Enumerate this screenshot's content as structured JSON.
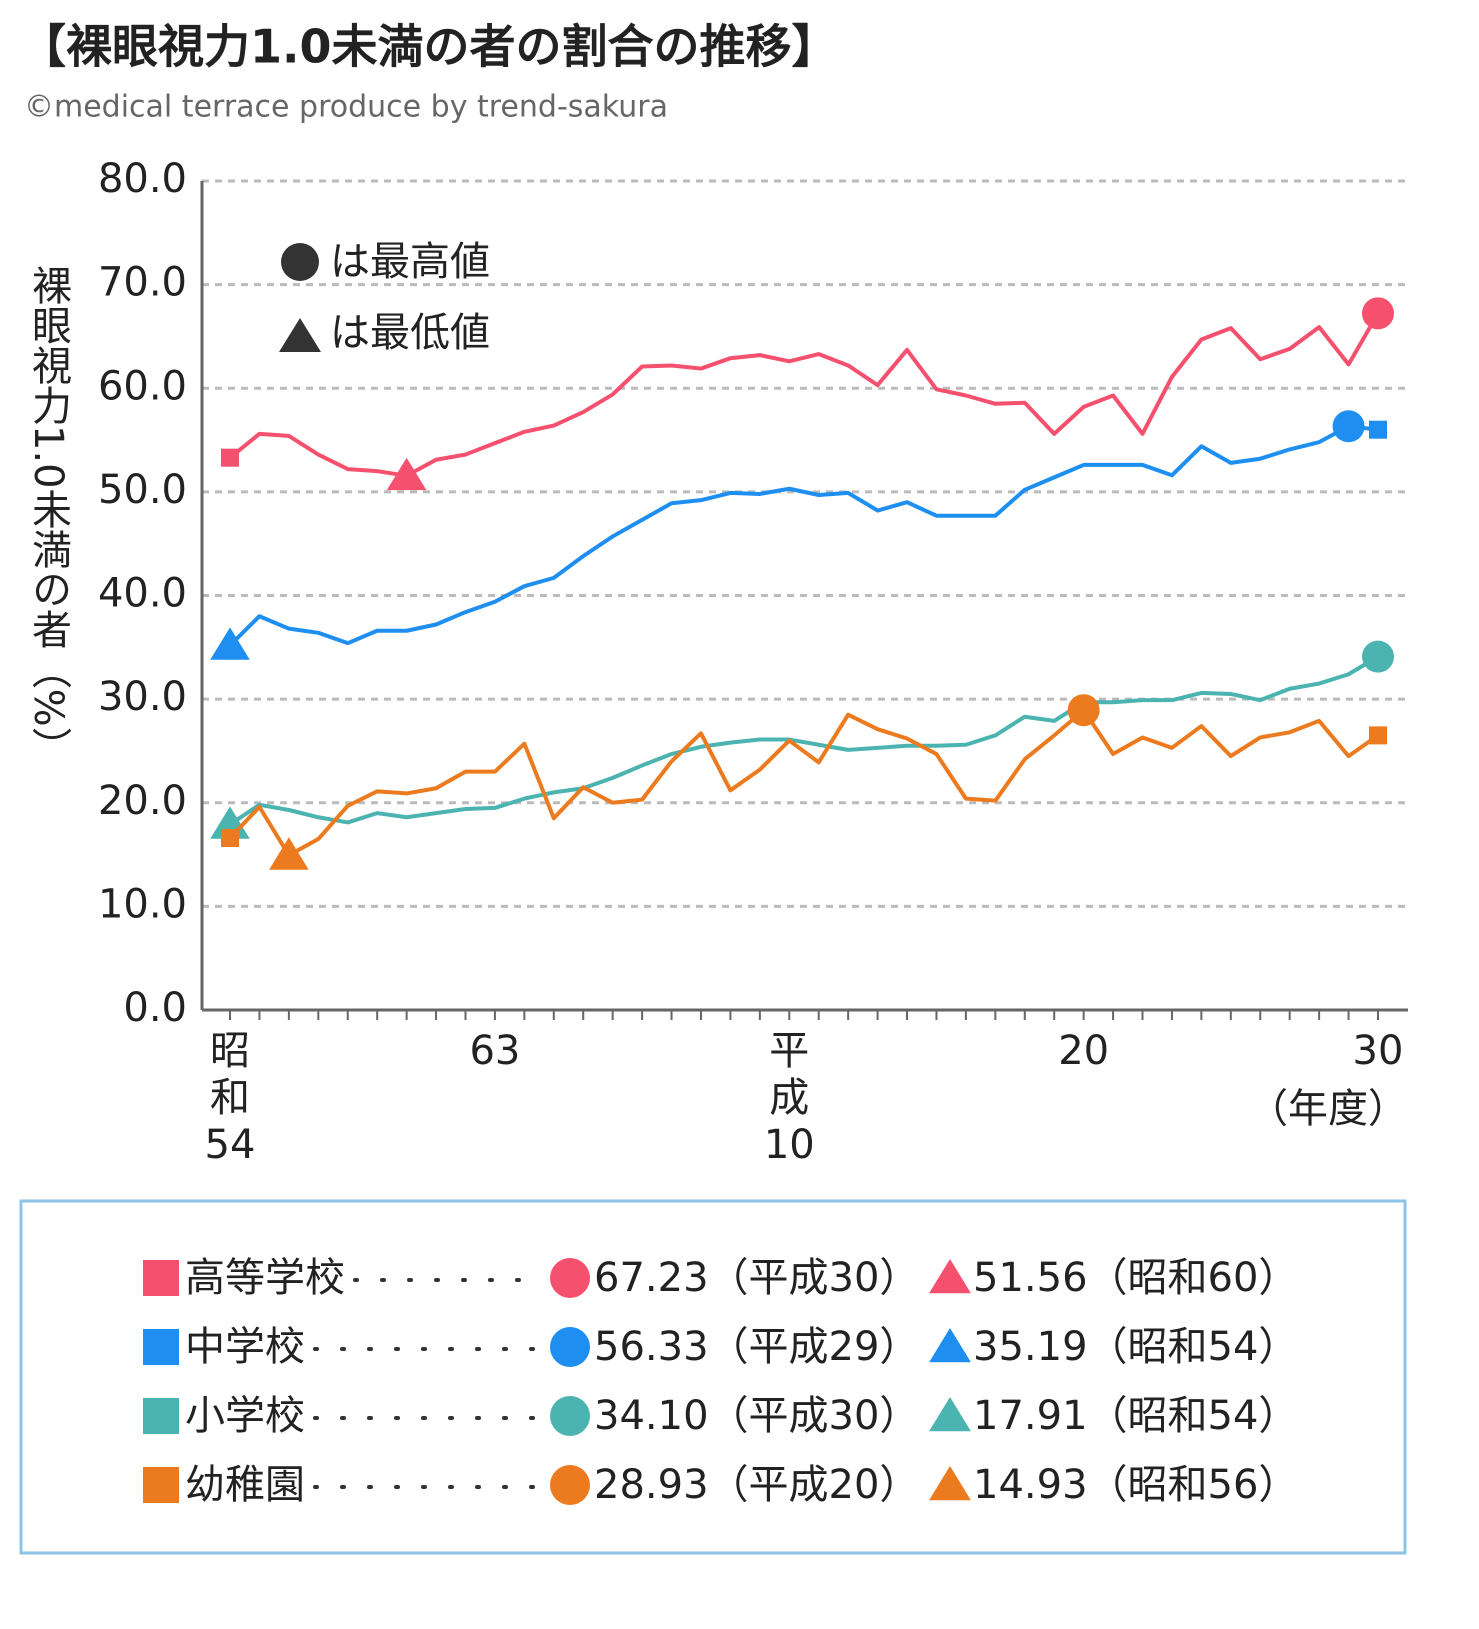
{
  "chart_data": {
    "type": "line",
    "title": "【裸眼視力1.0未満の者の割合の推移】",
    "subtitle": "©medical terrace produce by trend-sakura",
    "ylabel": "裸眼視力1.0未満の者（%）",
    "xlabel": "（年度）",
    "annotations": {
      "max": "は最高値",
      "min": "は最低値"
    },
    "categories": [
      "昭\n和\n54",
      null,
      null,
      null,
      null,
      null,
      null,
      null,
      null,
      "63",
      null,
      null,
      null,
      null,
      null,
      null,
      null,
      null,
      null,
      "平\n成\n10",
      null,
      null,
      null,
      null,
      null,
      null,
      null,
      null,
      null,
      "20",
      null,
      null,
      null,
      null,
      null,
      null,
      null,
      null,
      null,
      "30"
    ],
    "ylim": [
      0,
      80
    ],
    "yticks": [
      {
        "value": 0,
        "label": "0.0"
      },
      {
        "value": 10,
        "label": "10.0"
      },
      {
        "value": 20,
        "label": "20.0"
      },
      {
        "value": 30,
        "label": "30.0"
      },
      {
        "value": 40,
        "label": "40.0"
      },
      {
        "value": 50,
        "label": "50.0"
      },
      {
        "value": 60,
        "label": "60.0"
      },
      {
        "value": 70,
        "label": "70.0"
      },
      {
        "value": 80,
        "label": "80.0"
      }
    ],
    "grid": true,
    "series": [
      {
        "name": "高等学校",
        "color": "#f5506e",
        "max_label": "67.23（平成30）",
        "min_label": "51.56（昭和60）",
        "values": [
          53.3,
          55.6,
          55.4,
          53.6,
          52.2,
          52.0,
          51.56,
          53.1,
          53.6,
          54.7,
          55.8,
          56.4,
          57.7,
          59.4,
          62.1,
          62.2,
          61.9,
          62.9,
          63.2,
          62.6,
          63.3,
          62.2,
          60.3,
          63.7,
          59.9,
          59.3,
          58.5,
          58.6,
          55.6,
          58.2,
          59.3,
          55.6,
          61.1,
          64.7,
          65.8,
          62.8,
          63.8,
          65.9,
          62.3,
          67.23
        ]
      },
      {
        "name": "中学校",
        "color": "#1e8ff0",
        "max_label": "56.33（平成29）",
        "min_label": "35.19（昭和54）",
        "values": [
          35.19,
          38.0,
          36.8,
          36.4,
          35.4,
          36.6,
          36.6,
          37.2,
          38.4,
          39.4,
          40.9,
          41.7,
          43.8,
          45.7,
          47.3,
          48.9,
          49.2,
          49.9,
          49.8,
          50.3,
          49.7,
          49.9,
          48.2,
          49.0,
          47.7,
          47.7,
          47.7,
          50.2,
          51.4,
          52.6,
          52.6,
          52.6,
          51.6,
          54.4,
          52.8,
          53.2,
          54.1,
          54.8,
          56.33,
          56.0
        ]
      },
      {
        "name": "小学校",
        "color": "#4bb3b0",
        "max_label": "34.10（平成30）",
        "min_label": "17.91（昭和54）",
        "values": [
          17.91,
          19.8,
          19.3,
          18.6,
          18.1,
          19.0,
          18.6,
          19.0,
          19.4,
          19.5,
          20.4,
          21.0,
          21.4,
          22.4,
          23.6,
          24.7,
          25.4,
          25.8,
          26.1,
          26.1,
          25.6,
          25.1,
          25.3,
          25.5,
          25.5,
          25.6,
          26.5,
          28.3,
          27.9,
          29.7,
          29.7,
          29.9,
          29.9,
          30.6,
          30.5,
          29.9,
          31.0,
          31.5,
          32.4,
          34.1
        ]
      },
      {
        "name": "幼稚園",
        "color": "#ec7a1f",
        "max_label": "28.93（平成20）",
        "min_label": "14.93（昭和56）",
        "values": [
          16.6,
          19.6,
          14.93,
          16.5,
          19.7,
          21.1,
          20.9,
          21.4,
          23.0,
          23.0,
          25.7,
          18.5,
          21.5,
          20.0,
          20.3,
          24.0,
          26.7,
          21.2,
          23.2,
          26.0,
          23.9,
          28.5,
          27.1,
          26.2,
          24.7,
          20.4,
          20.2,
          24.2,
          26.5,
          28.93,
          24.7,
          26.3,
          25.3,
          27.4,
          24.5,
          26.3,
          26.8,
          27.9,
          24.5,
          26.5
        ]
      }
    ]
  }
}
